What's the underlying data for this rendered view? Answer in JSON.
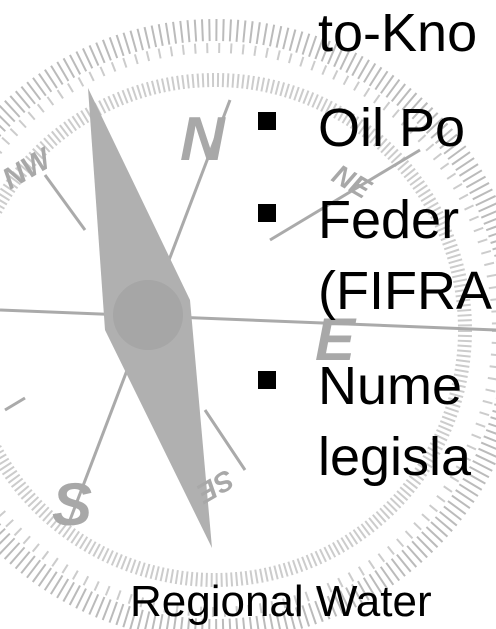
{
  "compass": {
    "labels": [
      "N",
      "NW",
      "NE",
      "E",
      "S",
      "SE"
    ]
  },
  "slide": {
    "lines": [
      "to-Kno",
      "Oil Po",
      "Feder",
      "(FIFRA",
      "Nume",
      "legisla"
    ],
    "footer": "Regional Water"
  }
}
